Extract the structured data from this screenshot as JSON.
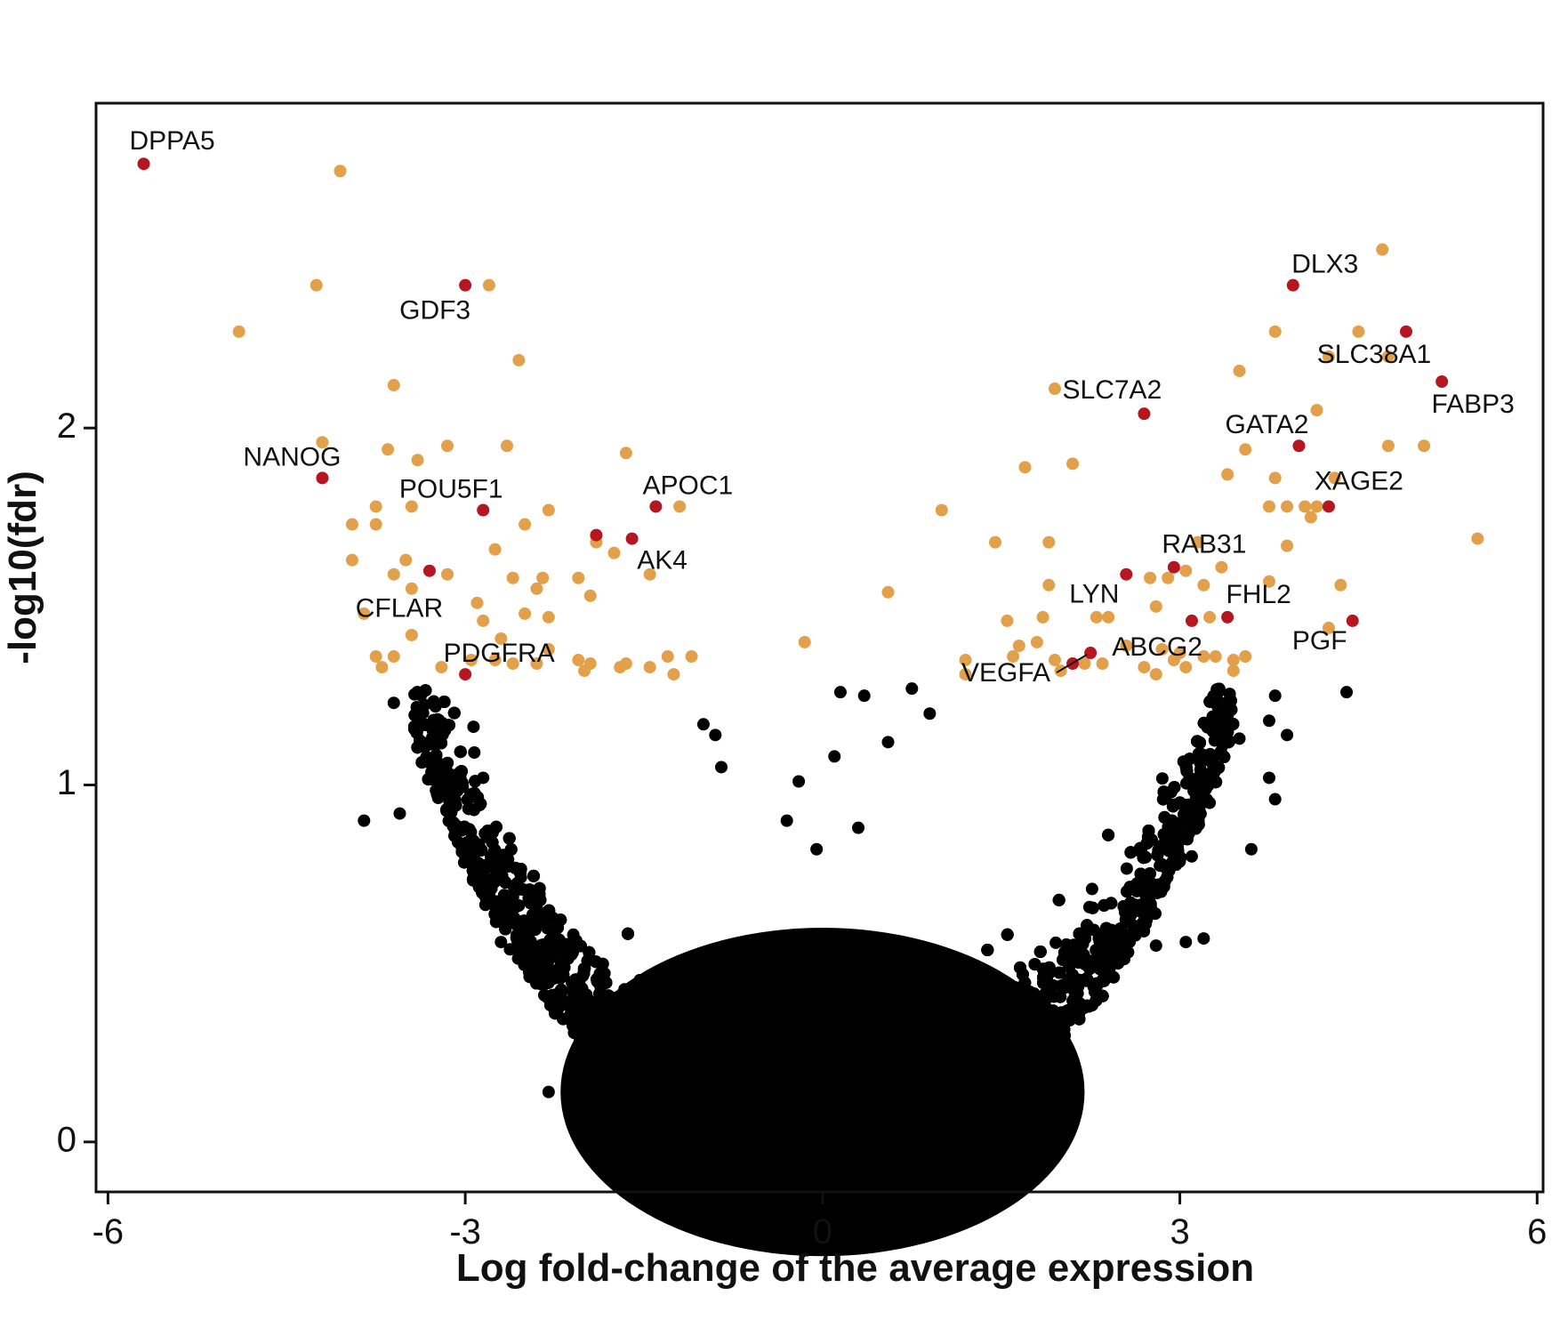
{
  "chart_data": {
    "type": "scatter",
    "xlabel": "Log fold-change of the average expression",
    "ylabel": "-log10(fdr)",
    "xlim": [
      -6.1,
      6.05
    ],
    "ylim": [
      -0.14,
      2.91
    ],
    "x_ticks": [
      -6,
      -3,
      0,
      3,
      6
    ],
    "x_tick_labels": [
      "-6",
      "-3",
      "0",
      "3",
      "6"
    ],
    "y_ticks": [
      0,
      1,
      2
    ],
    "y_tick_labels": [
      "0",
      "1",
      "2"
    ],
    "grid": false,
    "legend": "none",
    "colors": {
      "labeled_gene": "#b5161f",
      "significant": "#e2a04a",
      "not_significant": "#000000"
    },
    "series": [
      {
        "values": [
          {
            "x": -5.7,
            "y": 2.74,
            "label": "DPPA5"
          },
          {
            "x": -3.0,
            "y": 2.4,
            "label": "GDF3"
          },
          {
            "x": -4.2,
            "y": 1.86,
            "label": "NANOG"
          },
          {
            "x": -2.85,
            "y": 1.77,
            "label": "POU5F1"
          },
          {
            "x": -1.4,
            "y": 1.78,
            "label": "APOC1"
          },
          {
            "x": -1.6,
            "y": 1.69,
            "label": "AK4"
          },
          {
            "x": -1.9,
            "y": 1.7,
            "label": ""
          },
          {
            "x": -3.3,
            "y": 1.6,
            "label": "CFLAR"
          },
          {
            "x": -3.0,
            "y": 1.31,
            "label": "PDGFRA"
          },
          {
            "x": 3.95,
            "y": 2.4,
            "label": "DLX3"
          },
          {
            "x": 4.9,
            "y": 2.27,
            "label": "SLC38A1"
          },
          {
            "x": 5.2,
            "y": 2.13,
            "label": "FABP3"
          },
          {
            "x": 2.7,
            "y": 2.04,
            "label": "SLC7A2"
          },
          {
            "x": 4.0,
            "y": 1.95,
            "label": "GATA2"
          },
          {
            "x": 4.25,
            "y": 1.78,
            "label": "XAGE2"
          },
          {
            "x": 2.55,
            "y": 1.59,
            "label": "LYN"
          },
          {
            "x": 2.95,
            "y": 1.61,
            "label": "RAB31"
          },
          {
            "x": 3.1,
            "y": 1.46,
            "label": ""
          },
          {
            "x": 3.4,
            "y": 1.47,
            "label": "FHL2"
          },
          {
            "x": 4.45,
            "y": 1.46,
            "label": "PGF"
          },
          {
            "x": 2.25,
            "y": 1.37,
            "label": "ABCG2"
          },
          {
            "x": 2.1,
            "y": 1.34,
            "label": "VEGFA"
          }
        ]
      },
      {
        "values": [
          [
            -4.05,
            2.72
          ],
          [
            -4.25,
            2.4
          ],
          [
            -2.8,
            2.4
          ],
          [
            -4.9,
            2.27
          ],
          [
            -2.55,
            2.19
          ],
          [
            -3.6,
            2.12
          ],
          [
            -4.2,
            1.96
          ],
          [
            -3.65,
            1.94
          ],
          [
            -3.4,
            1.91
          ],
          [
            -3.15,
            1.95
          ],
          [
            -2.65,
            1.95
          ],
          [
            -1.65,
            1.93
          ],
          [
            -3.75,
            1.78
          ],
          [
            -3.45,
            1.78
          ],
          [
            -2.3,
            1.77
          ],
          [
            -1.2,
            1.78
          ],
          [
            -3.95,
            1.73
          ],
          [
            -3.75,
            1.73
          ],
          [
            -2.5,
            1.73
          ],
          [
            -2.75,
            1.66
          ],
          [
            -1.75,
            1.65
          ],
          [
            -1.9,
            1.68
          ],
          [
            -3.95,
            1.63
          ],
          [
            -3.5,
            1.63
          ],
          [
            -3.15,
            1.59
          ],
          [
            -3.6,
            1.59
          ],
          [
            -2.6,
            1.58
          ],
          [
            -2.35,
            1.58
          ],
          [
            -2.05,
            1.58
          ],
          [
            -1.45,
            1.59
          ],
          [
            -2.4,
            1.55
          ],
          [
            -3.45,
            1.55
          ],
          [
            -1.95,
            1.53
          ],
          [
            -2.9,
            1.51
          ],
          [
            -3.85,
            1.48
          ],
          [
            -2.85,
            1.46
          ],
          [
            -2.5,
            1.48
          ],
          [
            -2.3,
            1.47
          ],
          [
            -3.45,
            1.42
          ],
          [
            -2.7,
            1.41
          ],
          [
            -2.3,
            1.38
          ],
          [
            -3.75,
            1.36
          ],
          [
            -3.6,
            1.36
          ],
          [
            -3.2,
            1.33
          ],
          [
            -2.95,
            1.35
          ],
          [
            -2.75,
            1.35
          ],
          [
            -2.6,
            1.34
          ],
          [
            -2.4,
            1.34
          ],
          [
            -2.05,
            1.35
          ],
          [
            -1.95,
            1.34
          ],
          [
            -1.7,
            1.33
          ],
          [
            -1.45,
            1.33
          ],
          [
            -1.3,
            1.36
          ],
          [
            -1.1,
            1.36
          ],
          [
            -1.25,
            1.31
          ],
          [
            -3.7,
            1.33
          ],
          [
            -2.0,
            1.32
          ],
          [
            -1.65,
            1.34
          ],
          [
            -0.15,
            1.4
          ],
          [
            0.55,
            1.54
          ],
          [
            1.0,
            1.77
          ],
          [
            1.45,
            1.68
          ],
          [
            1.9,
            1.68
          ],
          [
            1.7,
            1.89
          ],
          [
            2.1,
            1.9
          ],
          [
            1.95,
            2.11
          ],
          [
            4.7,
            2.5
          ],
          [
            3.8,
            2.27
          ],
          [
            4.5,
            2.27
          ],
          [
            4.75,
            2.2
          ],
          [
            4.25,
            2.2
          ],
          [
            3.5,
            2.16
          ],
          [
            4.15,
            2.05
          ],
          [
            3.55,
            1.94
          ],
          [
            4.75,
            1.95
          ],
          [
            5.05,
            1.95
          ],
          [
            3.4,
            1.87
          ],
          [
            3.8,
            1.86
          ],
          [
            4.3,
            1.86
          ],
          [
            3.75,
            1.78
          ],
          [
            3.9,
            1.78
          ],
          [
            4.05,
            1.78
          ],
          [
            4.15,
            1.78
          ],
          [
            4.1,
            1.75
          ],
          [
            3.15,
            1.68
          ],
          [
            5.5,
            1.69
          ],
          [
            3.9,
            1.67
          ],
          [
            2.75,
            1.58
          ],
          [
            2.9,
            1.58
          ],
          [
            3.05,
            1.6
          ],
          [
            3.35,
            1.61
          ],
          [
            3.2,
            1.56
          ],
          [
            3.75,
            1.57
          ],
          [
            4.35,
            1.56
          ],
          [
            1.9,
            1.56
          ],
          [
            1.55,
            1.46
          ],
          [
            1.85,
            1.47
          ],
          [
            2.3,
            1.47
          ],
          [
            2.4,
            1.47
          ],
          [
            2.8,
            1.5
          ],
          [
            3.25,
            1.47
          ],
          [
            4.25,
            1.44
          ],
          [
            1.65,
            1.39
          ],
          [
            1.8,
            1.4
          ],
          [
            2.55,
            1.39
          ],
          [
            2.85,
            1.38
          ],
          [
            3.0,
            1.37
          ],
          [
            3.3,
            1.36
          ],
          [
            3.45,
            1.35
          ],
          [
            3.55,
            1.36
          ],
          [
            1.2,
            1.35
          ],
          [
            1.6,
            1.36
          ],
          [
            1.95,
            1.35
          ],
          [
            2.2,
            1.34
          ],
          [
            2.35,
            1.34
          ],
          [
            2.7,
            1.33
          ],
          [
            2.95,
            1.35
          ],
          [
            3.2,
            1.36
          ],
          [
            3.45,
            1.32
          ],
          [
            1.2,
            1.31
          ],
          [
            2.0,
            1.32
          ],
          [
            2.8,
            1.31
          ],
          [
            3.05,
            1.33
          ]
        ]
      },
      {
        "values": [
          [
            -3.6,
            1.23
          ],
          [
            -3.25,
            1.22
          ],
          [
            -3.85,
            0.9
          ],
          [
            -3.55,
            0.92
          ],
          [
            -3.2,
            0.98
          ],
          [
            -3.1,
            1.01
          ],
          [
            -2.85,
            1.02
          ],
          [
            -3.0,
            0.8
          ],
          [
            -1.0,
            1.17
          ],
          [
            -0.9,
            1.14
          ],
          [
            -0.2,
            1.01
          ],
          [
            0.15,
            1.26
          ],
          [
            0.35,
            1.25
          ],
          [
            0.75,
            1.27
          ],
          [
            0.55,
            1.12
          ],
          [
            0.9,
            1.2
          ],
          [
            0.1,
            1.08
          ],
          [
            3.8,
            1.25
          ],
          [
            3.75,
            1.18
          ],
          [
            3.9,
            1.14
          ],
          [
            3.75,
            1.02
          ],
          [
            3.8,
            0.96
          ],
          [
            3.6,
            0.82
          ],
          [
            3.25,
            0.95
          ],
          [
            3.1,
            0.8
          ],
          [
            4.4,
            1.26
          ],
          [
            3.5,
            1.13
          ],
          [
            -2.3,
            0.14
          ],
          [
            -2.7,
            0.56
          ],
          [
            -2.55,
            0.6
          ],
          [
            2.8,
            0.55
          ],
          [
            3.2,
            0.57
          ],
          [
            3.05,
            0.56
          ],
          [
            -0.85,
            1.05
          ],
          [
            -0.3,
            0.9
          ],
          [
            0.3,
            0.88
          ],
          [
            -0.05,
            0.82
          ]
        ]
      }
    ],
    "annotation_leaders": [
      {
        "from": [
          2.1,
          1.34
        ],
        "to": [
          2.25,
          1.37
        ]
      }
    ]
  }
}
